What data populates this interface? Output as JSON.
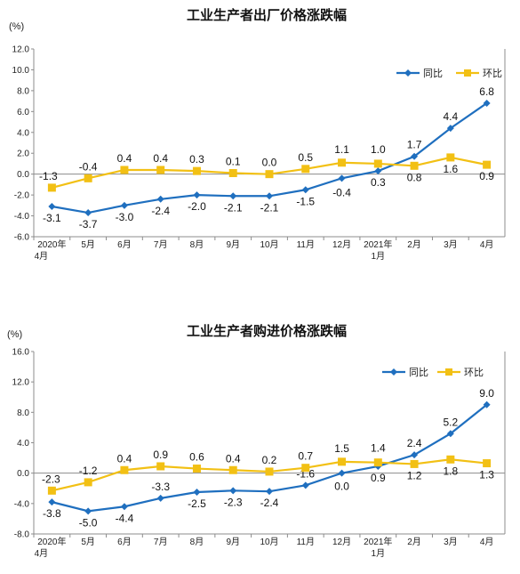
{
  "chart_data": [
    {
      "type": "line",
      "title": "工业生产者出厂价格涨跌幅",
      "ylabel": "(%)",
      "ylim": [
        -6.0,
        12.0
      ],
      "yticks": [
        "12.0",
        "10.0",
        "8.0",
        "6.0",
        "4.0",
        "2.0",
        "0.0",
        "-2.0",
        "-4.0",
        "-6.0"
      ],
      "categories": [
        "2020年\n4月",
        "5月",
        "6月",
        "7月",
        "8月",
        "9月",
        "10月",
        "11月",
        "12月",
        "2021年\n1月",
        "2月",
        "3月",
        "4月"
      ],
      "legend": "top-right",
      "series": [
        {
          "name": "同比",
          "color": "#1f6fbf",
          "marker": "diamond",
          "values": [
            -3.1,
            -3.7,
            -3.0,
            -2.4,
            -2.0,
            -2.1,
            -2.1,
            -1.5,
            -0.4,
            0.3,
            1.7,
            4.4,
            6.8
          ],
          "labels": [
            "-3.1",
            "-3.7",
            "-3.0",
            "-2.4",
            "-2.0",
            "-2.1",
            "-2.1",
            "-1.5",
            "-0.4",
            "0.3",
            "1.7",
            "4.4",
            "6.8"
          ]
        },
        {
          "name": "环比",
          "color": "#f2c014",
          "marker": "square",
          "values": [
            -1.3,
            -0.4,
            0.4,
            0.4,
            0.3,
            0.1,
            0.0,
            0.5,
            1.1,
            1.0,
            0.8,
            1.6,
            0.9
          ],
          "labels": [
            "-1.3",
            "-0.4",
            "0.4",
            "0.4",
            "0.3",
            "0.1",
            "0.0",
            "0.5",
            "1.1",
            "1.0",
            "0.8",
            "1.6",
            "0.9"
          ]
        }
      ]
    },
    {
      "type": "line",
      "title": "工业生产者购进价格涨跌幅",
      "ylabel": "(%)",
      "ylim": [
        -8.0,
        16.0
      ],
      "yticks": [
        "16.0",
        "12.0",
        "8.0",
        "4.0",
        "0.0",
        "-4.0",
        "-8.0"
      ],
      "categories": [
        "2020年\n4月",
        "5月",
        "6月",
        "7月",
        "8月",
        "9月",
        "10月",
        "11月",
        "12月",
        "2021年\n1月",
        "2月",
        "3月",
        "4月"
      ],
      "legend": "top-right",
      "series": [
        {
          "name": "同比",
          "color": "#1f6fbf",
          "marker": "diamond",
          "values": [
            -3.8,
            -5.0,
            -4.4,
            -3.3,
            -2.5,
            -2.3,
            -2.4,
            -1.6,
            0.0,
            0.9,
            2.4,
            5.2,
            9.0
          ],
          "labels": [
            "-3.8",
            "-5.0",
            "-4.4",
            "-3.3",
            "-2.5",
            "-2.3",
            "-2.4",
            "-1.6",
            "0.0",
            "0.9",
            "2.4",
            "5.2",
            "9.0"
          ]
        },
        {
          "name": "环比",
          "color": "#f2c014",
          "marker": "square",
          "values": [
            -2.3,
            -1.2,
            0.4,
            0.9,
            0.6,
            0.4,
            0.2,
            0.7,
            1.5,
            1.4,
            1.2,
            1.8,
            1.3
          ],
          "labels": [
            "-2.3",
            "-1.2",
            "0.4",
            "0.9",
            "0.6",
            "0.4",
            "0.2",
            "0.7",
            "1.5",
            "1.4",
            "1.2",
            "1.8",
            "1.3"
          ]
        }
      ]
    }
  ]
}
